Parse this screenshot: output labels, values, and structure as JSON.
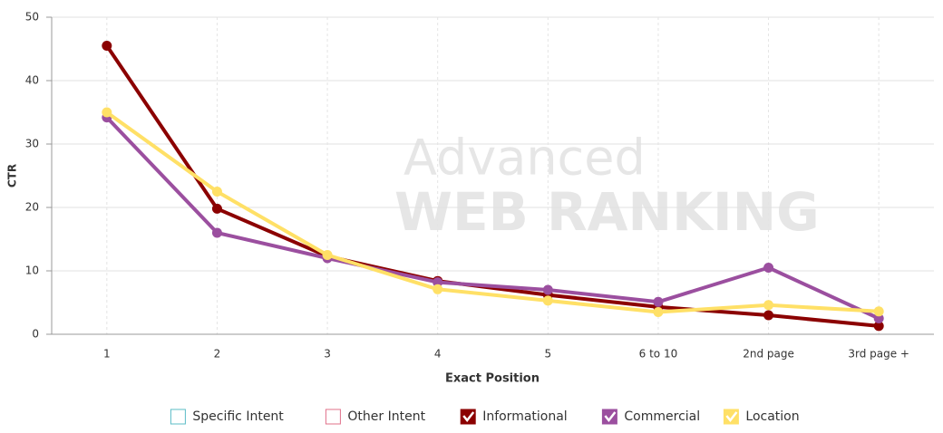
{
  "chart_data": {
    "type": "line",
    "watermark": [
      "Advanced",
      "WEB RANKING"
    ],
    "x_label": "Exact Position",
    "y_label": "CTR",
    "categories": [
      "1",
      "2",
      "3",
      "4",
      "5",
      "6 to 10",
      "2nd page",
      "3rd page +"
    ],
    "ylim": [
      0,
      50
    ],
    "yticks": [
      0,
      10,
      20,
      30,
      40,
      50
    ],
    "grid": true,
    "legend": "bottom",
    "series": [
      {
        "name": "Specific Intent",
        "color": "#5bbcc6",
        "visible": false
      },
      {
        "name": "Other Intent",
        "color": "#e0708a",
        "visible": false
      },
      {
        "name": "Informational",
        "color": "#8b0000",
        "visible": true,
        "values": [
          45.5,
          19.8,
          12.3,
          8.4,
          6.2,
          4.3,
          3.0,
          1.3
        ]
      },
      {
        "name": "Commercial",
        "color": "#9b4f9f",
        "visible": true,
        "values": [
          34.2,
          16.0,
          12.0,
          8.2,
          7.0,
          5.1,
          10.5,
          2.5
        ]
      },
      {
        "name": "Location",
        "color": "#ffe066",
        "visible": true,
        "values": [
          35.0,
          22.5,
          12.5,
          7.1,
          5.3,
          3.5,
          4.6,
          3.6
        ]
      }
    ]
  }
}
